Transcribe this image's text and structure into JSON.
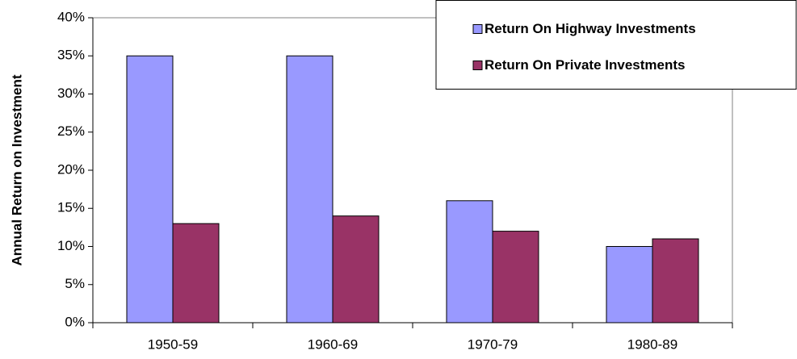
{
  "chart_data": {
    "type": "bar",
    "y_label": "Annual Return on Investment",
    "categories": [
      "1950-59",
      "1960-69",
      "1970-79",
      "1980-89"
    ],
    "series": [
      {
        "name": "Return On Highway Investments",
        "color": "#9999ff",
        "values": [
          35,
          35,
          16,
          10
        ]
      },
      {
        "name": "Return On Private Investments",
        "color": "#993366",
        "values": [
          13,
          14,
          12,
          11
        ]
      }
    ],
    "ylim": [
      0,
      40
    ],
    "yticks": [
      {
        "value": 0,
        "label": "0%"
      },
      {
        "value": 5,
        "label": "5%"
      },
      {
        "value": 10,
        "label": "10%"
      },
      {
        "value": 15,
        "label": "15%"
      },
      {
        "value": 20,
        "label": "20%"
      },
      {
        "value": 25,
        "label": "25%"
      },
      {
        "value": 30,
        "label": "30%"
      },
      {
        "value": 35,
        "label": "35%"
      },
      {
        "value": 40,
        "label": "40%"
      }
    ],
    "grid": false,
    "legend": "top-right"
  }
}
